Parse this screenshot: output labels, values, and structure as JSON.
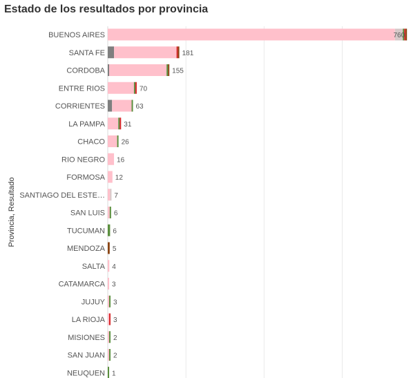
{
  "chart_data": {
    "type": "bar",
    "orientation": "horizontal",
    "stacked": true,
    "title": "Estado de los resultados por provincia",
    "xlabel": "",
    "ylabel": "Provincia, Resultado",
    "xlim": [
      0,
      760
    ],
    "grid": true,
    "categories": [
      "BUENOS AIRES",
      "SANTA FE",
      "CORDOBA",
      "ENTRE RIOS",
      "CORRIENTES",
      "LA PAMPA",
      "CHACO",
      "RIO NEGRO",
      "FORMOSA",
      "SANTIAGO DEL ESTE…",
      "SAN LUIS",
      "TUCUMAN",
      "MENDOZA",
      "SALTA",
      "CATAMARCA",
      "JUJUY",
      "LA RIOJA",
      "MISIONES",
      "SAN JUAN",
      "NEUQUEN"
    ],
    "totals": [
      760,
      181,
      155,
      70,
      63,
      31,
      26,
      16,
      12,
      7,
      6,
      6,
      5,
      4,
      3,
      3,
      3,
      2,
      2,
      1
    ],
    "segment_colors": [
      "#7f7f7f",
      "#ffc0cb",
      "#d6c8c8",
      "#5a8f3e",
      "#d62728",
      "#8b4513"
    ],
    "series": [
      {
        "values": [
          0,
          16,
          3,
          0,
          11,
          0,
          0,
          0,
          0,
          0,
          0,
          0,
          0,
          0,
          0,
          0,
          0,
          0,
          0,
          0
        ]
      },
      {
        "values": [
          735,
          160,
          147,
          67,
          50,
          27,
          24,
          16,
          12,
          6,
          5,
          0,
          0,
          4,
          3,
          2,
          2,
          1,
          1,
          0
        ]
      },
      {
        "values": [
          20,
          0,
          0,
          0,
          0,
          0,
          0,
          0,
          0,
          1,
          0,
          0,
          0,
          0,
          0,
          0,
          0,
          0,
          0,
          0
        ]
      },
      {
        "values": [
          3,
          0,
          2,
          1,
          2,
          2,
          2,
          0,
          0,
          0,
          1,
          6,
          0,
          0,
          0,
          1,
          0,
          1,
          1,
          1
        ]
      },
      {
        "values": [
          1,
          3,
          0,
          2,
          0,
          2,
          0,
          0,
          0,
          0,
          0,
          0,
          0,
          0,
          0,
          0,
          1,
          0,
          0,
          0
        ]
      },
      {
        "values": [
          1,
          2,
          3,
          0,
          0,
          0,
          0,
          0,
          0,
          0,
          0,
          0,
          5,
          0,
          0,
          0,
          0,
          0,
          0,
          0
        ]
      }
    ]
  }
}
